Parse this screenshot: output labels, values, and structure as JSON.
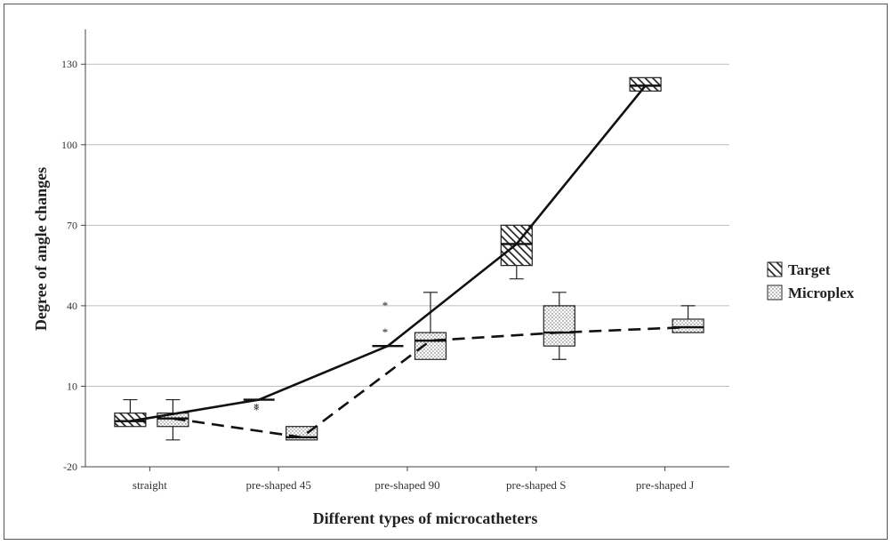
{
  "chart_data": {
    "type": "box",
    "xlabel": "Different types of microcatheters",
    "ylabel": "Degree of angle changes",
    "ylim": [
      -20,
      143
    ],
    "yticks": [
      -20,
      10,
      40,
      70,
      100,
      130
    ],
    "grid": true,
    "legend_position": "right",
    "categories": [
      "straight",
      "pre-shaped 45",
      "pre-shaped 90",
      "pre-shaped S",
      "pre-shaped J"
    ],
    "series": [
      {
        "name": "Target",
        "pattern": "hatch",
        "line_style": "solid",
        "boxes": [
          {
            "min": -5,
            "q1": -5,
            "median": -3,
            "q3": 0,
            "max": 5,
            "outliers": []
          },
          {
            "min": 5,
            "q1": 5,
            "median": 5,
            "q3": 5,
            "max": 5,
            "outliers": [
              2,
              1
            ]
          },
          {
            "min": 25,
            "q1": 25,
            "median": 25,
            "q3": 25,
            "max": 25,
            "outliers": [
              40,
              30
            ]
          },
          {
            "min": 50,
            "q1": 55,
            "median": 63,
            "q3": 70,
            "max": 70,
            "outliers": []
          },
          {
            "min": 120,
            "q1": 120,
            "median": 122,
            "q3": 125,
            "max": 125,
            "outliers": []
          }
        ]
      },
      {
        "name": "Microplex",
        "pattern": "dots",
        "line_style": "dashed",
        "boxes": [
          {
            "min": -10,
            "q1": -5,
            "median": -2,
            "q3": 0,
            "max": 5,
            "outliers": []
          },
          {
            "min": -10,
            "q1": -10,
            "median": -9,
            "q3": -5,
            "max": -5,
            "outliers": []
          },
          {
            "min": 20,
            "q1": 20,
            "median": 27,
            "q3": 30,
            "max": 45,
            "outliers": []
          },
          {
            "min": 20,
            "q1": 25,
            "median": 30,
            "q3": 40,
            "max": 45,
            "outliers": []
          },
          {
            "min": 30,
            "q1": 30,
            "median": 32,
            "q3": 35,
            "max": 40,
            "outliers": []
          }
        ]
      }
    ]
  }
}
